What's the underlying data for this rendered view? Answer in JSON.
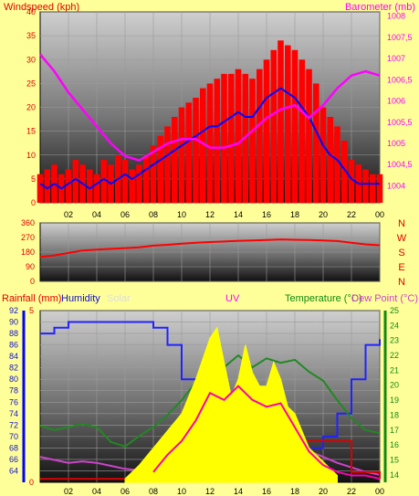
{
  "chart_data": [
    {
      "type": "line",
      "title": "",
      "subtitle": "",
      "xlabel": "",
      "x_ticks": [
        "02",
        "04",
        "06",
        "08",
        "10",
        "12",
        "14",
        "16",
        "18",
        "20",
        "22",
        "00"
      ],
      "xlim": [
        0,
        24
      ],
      "left_axis": {
        "label": "Windspeed (kph)",
        "ylim": [
          0,
          40
        ],
        "ticks": [
          0,
          5,
          10,
          15,
          20,
          25,
          30,
          35,
          40
        ]
      },
      "right_axis": {
        "label": "Barometer (mb)",
        "ylim": [
          1003.6,
          1008.1
        ],
        "ticks": [
          "1004",
          "1004,5",
          "1005",
          "1005,5",
          "1006",
          "1006,5",
          "1007",
          "1007,5",
          "1008"
        ]
      },
      "grid": true,
      "series": [
        {
          "axis": "left",
          "color": "#ff0000",
          "style": "bars",
          "x": [
            0,
            0.5,
            1,
            1.5,
            2,
            2.5,
            3,
            3.5,
            4,
            4.5,
            5,
            5.5,
            6,
            6.5,
            7,
            7.5,
            8,
            8.5,
            9,
            9.5,
            10,
            10.5,
            11,
            11.5,
            12,
            12.5,
            13,
            13.5,
            14,
            14.5,
            15,
            15.5,
            16,
            16.5,
            17,
            17.5,
            18,
            18.5,
            19,
            19.5,
            20,
            20.5,
            21,
            21.5,
            22,
            22.5,
            23,
            23.5,
            24
          ],
          "y": [
            6,
            7,
            8,
            6,
            7,
            9,
            8,
            7,
            6,
            9,
            8,
            10,
            9,
            7,
            8,
            10,
            12,
            14,
            16,
            18,
            20,
            21,
            22,
            24,
            25,
            26,
            27,
            27,
            28,
            27,
            26,
            28,
            30,
            32,
            34,
            33,
            32,
            30,
            28,
            25,
            20,
            18,
            16,
            13,
            9,
            8,
            7,
            6,
            6
          ]
        },
        {
          "axis": "left",
          "color": "#0000ff",
          "style": "line",
          "x": [
            0,
            0.5,
            1,
            1.5,
            2,
            2.5,
            3,
            3.5,
            4,
            4.5,
            5,
            5.5,
            6,
            6.5,
            7,
            7.5,
            8,
            8.5,
            9,
            9.5,
            10,
            10.5,
            11,
            11.5,
            12,
            12.5,
            13,
            13.5,
            14,
            14.5,
            15,
            15.5,
            16,
            16.5,
            17,
            17.5,
            18,
            18.5,
            19,
            19.5,
            20,
            20.5,
            21,
            21.5,
            22,
            22.5,
            23,
            23.5,
            24
          ],
          "y": [
            4,
            3,
            4,
            3,
            4,
            5,
            4,
            3,
            4,
            5,
            4,
            5,
            6,
            5,
            6,
            7,
            8,
            9,
            10,
            11,
            12,
            13,
            14,
            15,
            16,
            16,
            17,
            18,
            19,
            18,
            18,
            20,
            22,
            23,
            24,
            23,
            22,
            20,
            18,
            15,
            12,
            10,
            9,
            7,
            5,
            4,
            4,
            4,
            4
          ]
        },
        {
          "axis": "right",
          "color": "#ff00ff",
          "style": "line",
          "x": [
            0,
            1,
            2,
            3,
            4,
            5,
            6,
            7,
            8,
            9,
            10,
            11,
            12,
            13,
            14,
            15,
            16,
            17,
            18,
            19,
            20,
            21,
            22,
            23,
            24
          ],
          "y": [
            1007.1,
            1006.7,
            1006.2,
            1005.8,
            1005.4,
            1005.0,
            1004.7,
            1004.6,
            1004.8,
            1005.0,
            1005.1,
            1005.1,
            1004.9,
            1004.9,
            1005.0,
            1005.3,
            1005.6,
            1005.8,
            1005.9,
            1005.6,
            1005.9,
            1006.3,
            1006.6,
            1006.7,
            1006.6
          ]
        }
      ]
    },
    {
      "type": "line",
      "title": "",
      "xlabel": "",
      "ylim": [
        0,
        360
      ],
      "y_ticks": [
        0,
        90,
        180,
        270,
        360
      ],
      "side_labels": [
        "N",
        "W",
        "S",
        "E",
        "N"
      ],
      "grid": true,
      "series": [
        {
          "color": "#ff0000",
          "x": [
            0,
            1,
            2,
            3,
            4,
            5,
            6,
            7,
            8,
            9,
            10,
            11,
            12,
            13,
            14,
            15,
            16,
            17,
            18,
            19,
            20,
            21,
            22,
            23,
            24
          ],
          "y": [
            150,
            160,
            175,
            190,
            195,
            200,
            205,
            210,
            220,
            225,
            232,
            238,
            242,
            245,
            250,
            252,
            255,
            258,
            256,
            254,
            252,
            248,
            238,
            228,
            222
          ]
        }
      ]
    },
    {
      "type": "line",
      "title": "",
      "xlabel": "",
      "x_ticks": [
        "02",
        "04",
        "06",
        "08",
        "10",
        "12",
        "14",
        "16",
        "18",
        "20",
        "22",
        "00"
      ],
      "xlim": [
        0,
        24
      ],
      "grid": true,
      "header_labels": {
        "rainfall": "Rainfall (mm)",
        "humidity": "Humidity",
        "solar": "Solar",
        "uv": "UV",
        "temperature": "Temperature (°C)",
        "dewpoint": "Dew Point (°C)"
      },
      "rain_axis": {
        "ylim": [
          0,
          5
        ],
        "ticks": [
          0,
          5
        ]
      },
      "humidity_axis": {
        "ylim": [
          62,
          92
        ],
        "ticks": [
          64,
          66,
          68,
          70,
          72,
          74,
          76,
          78,
          80,
          82,
          84,
          86,
          88,
          90,
          92
        ]
      },
      "temp_axis": {
        "ylim": [
          13.5,
          25
        ],
        "ticks": [
          14,
          15,
          16,
          17,
          18,
          19,
          20,
          21,
          22,
          23,
          24,
          25
        ]
      },
      "series": [
        {
          "axis": "humidity",
          "color": "#2222ff",
          "style": "step",
          "x": [
            0,
            1,
            2,
            3,
            4,
            5,
            6,
            7,
            8,
            9,
            10,
            11,
            12,
            13,
            14,
            15,
            16,
            17,
            18,
            19,
            20,
            21,
            22,
            23,
            24
          ],
          "y": [
            88,
            89,
            90,
            90,
            90,
            90,
            90,
            90,
            89,
            86,
            80,
            78,
            76,
            74,
            72,
            70,
            68,
            67,
            67,
            68,
            70,
            74,
            80,
            86,
            87
          ]
        },
        {
          "axis": "temp",
          "color": "#228822",
          "style": "line",
          "x": [
            0,
            1,
            2,
            3,
            4,
            5,
            6,
            7,
            8,
            9,
            10,
            11,
            12,
            13,
            14,
            15,
            16,
            17,
            18,
            19,
            20,
            21,
            22,
            23,
            24
          ],
          "y": [
            17.3,
            17.0,
            17.2,
            17.4,
            17.2,
            16.2,
            15.9,
            16.6,
            17.2,
            18.0,
            19.0,
            20.2,
            21.6,
            21.2,
            22.0,
            21.2,
            21.8,
            21.5,
            21.7,
            20.9,
            20.3,
            19.0,
            17.8,
            17.0,
            16.8
          ]
        },
        {
          "axis": "temp",
          "color": "#cc44cc",
          "style": "line",
          "x": [
            0,
            1,
            2,
            3,
            4,
            5,
            6,
            7,
            8,
            9,
            10,
            11,
            12,
            13,
            14,
            15,
            16,
            17,
            18,
            19,
            20,
            21,
            22,
            23,
            24
          ],
          "y": [
            15.2,
            15.0,
            14.8,
            14.9,
            14.8,
            14.6,
            14.4,
            14.3,
            14.3,
            14.6,
            15.0,
            15.5,
            16.0,
            16.1,
            16.2,
            16.2,
            16.2,
            16.0,
            15.9,
            15.6,
            15.2,
            14.8,
            14.5,
            14.2,
            14.0
          ]
        },
        {
          "axis": "rain",
          "color": "#dd0000",
          "style": "step",
          "x": [
            0,
            8.5,
            9,
            14.5,
            15,
            19,
            19.5,
            22,
            24
          ],
          "y": [
            0.1,
            0.1,
            1.0,
            1.0,
            1.2,
            1.2,
            1.2,
            0.3,
            0.1
          ]
        },
        {
          "axis": "uv",
          "color": "#ffff00",
          "style": "area",
          "x": [
            6,
            7,
            8,
            9,
            10,
            11,
            12,
            12.5,
            13,
            13.5,
            14,
            14.5,
            15,
            15.5,
            16,
            16.5,
            17,
            17.5,
            18,
            19,
            20,
            21
          ],
          "y": [
            0.1,
            0.5,
            1.0,
            1.5,
            2.0,
            3.0,
            4.2,
            4.5,
            3.5,
            2.5,
            3.0,
            4.0,
            3.2,
            2.8,
            2.8,
            3.5,
            3.0,
            2.2,
            2.0,
            1.0,
            0.6,
            0.2
          ]
        },
        {
          "axis": "uv",
          "color": "#ff00aa",
          "style": "line",
          "x": [
            8,
            9,
            10,
            11,
            12,
            13,
            14,
            15,
            16,
            17,
            18,
            19,
            20,
            21,
            22,
            23,
            24
          ],
          "y": [
            0.3,
            0.8,
            1.2,
            1.8,
            2.6,
            2.4,
            2.8,
            2.4,
            2.2,
            2.3,
            1.6,
            0.9,
            0.5,
            0.3,
            0.2,
            0.2,
            0.1
          ]
        }
      ]
    }
  ],
  "colors": {
    "background": "#ffff99",
    "wind": "#ff0000",
    "gust": "#0000ff",
    "barometer": "#ff00ff",
    "direction": "#ff0000",
    "humidity": "#2222ff",
    "temperature": "#228822",
    "dewpoint": "#cc44cc",
    "rain": "#dd0000",
    "uv_area": "#ffff00",
    "solar": "#ff00aa"
  }
}
